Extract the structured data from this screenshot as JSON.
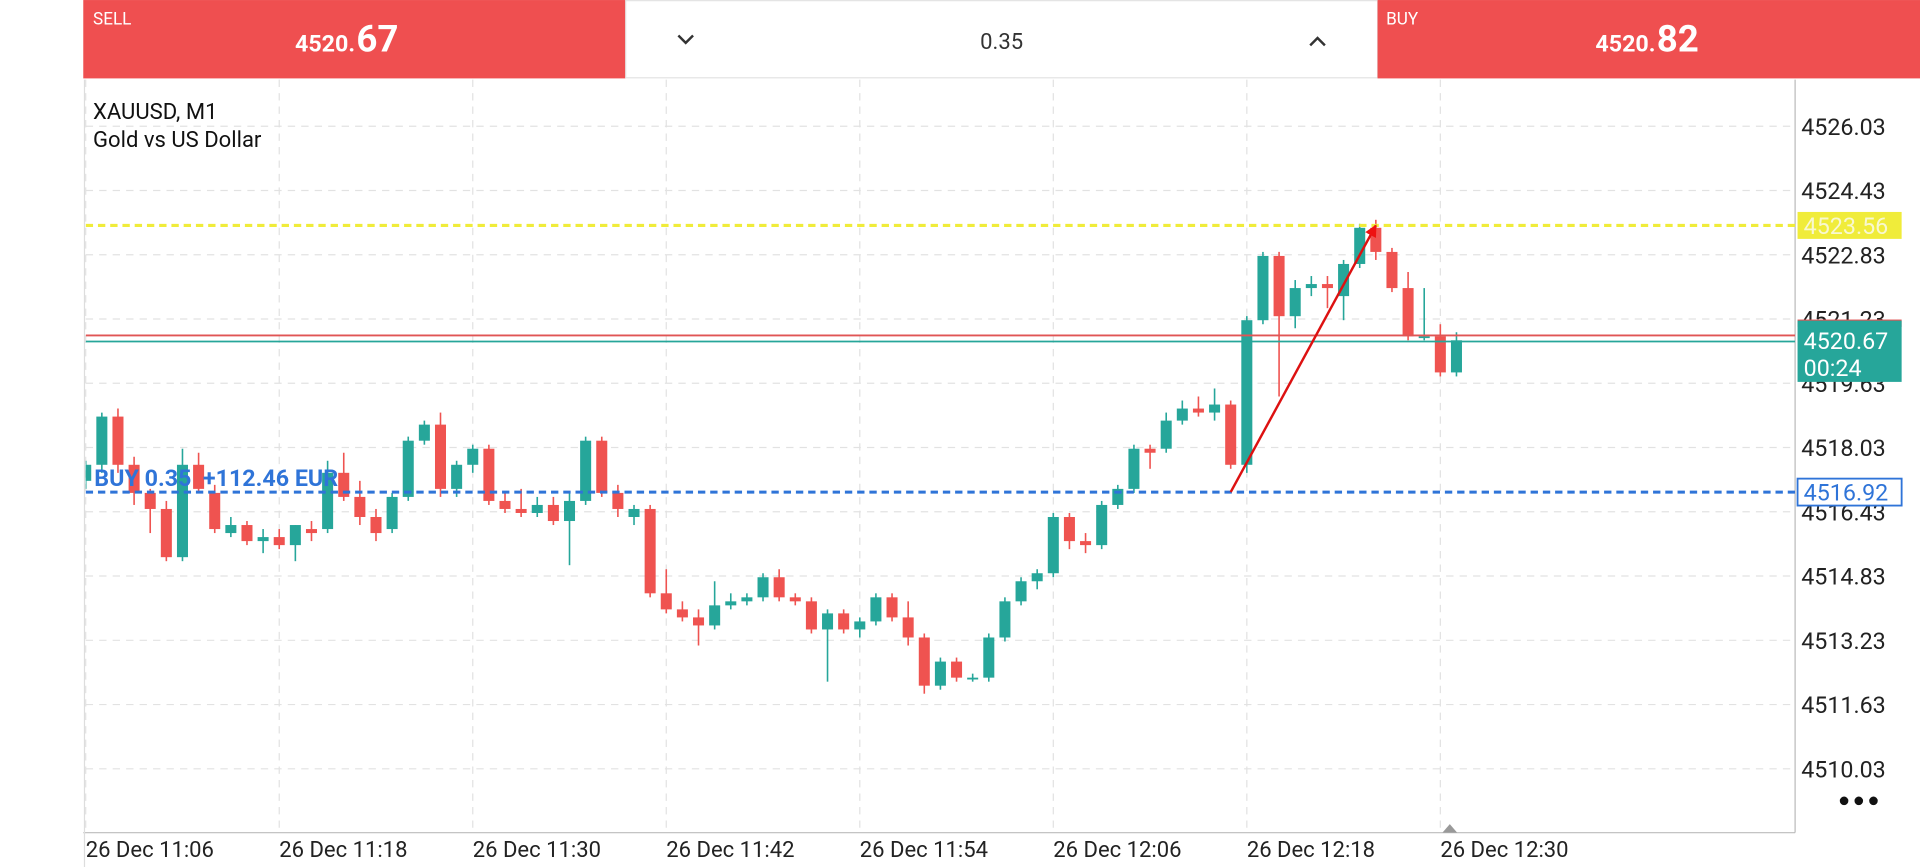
{
  "header": {
    "sell": {
      "label": "SELL",
      "price_main": "4520.",
      "price_pips": "67"
    },
    "volume": "0.35",
    "buy": {
      "label": "BUY",
      "price_main": "4520.",
      "price_pips": "82"
    }
  },
  "chart_data": {
    "type": "candlestick",
    "title": "XAUUSD, M1",
    "subtitle": "Gold vs US Dollar",
    "x": [
      "26 Dec 11:06",
      "26 Dec 11:07",
      "26 Dec 11:08",
      "26 Dec 11:09",
      "26 Dec 11:10",
      "26 Dec 11:11",
      "26 Dec 11:12",
      "26 Dec 11:13",
      "26 Dec 11:14",
      "26 Dec 11:15",
      "26 Dec 11:16",
      "26 Dec 11:17",
      "26 Dec 11:18",
      "26 Dec 11:19",
      "26 Dec 11:20",
      "26 Dec 11:21",
      "26 Dec 11:22",
      "26 Dec 11:23",
      "26 Dec 11:24",
      "26 Dec 11:25",
      "26 Dec 11:26",
      "26 Dec 11:27",
      "26 Dec 11:28",
      "26 Dec 11:29",
      "26 Dec 11:30",
      "26 Dec 11:31",
      "26 Dec 11:32",
      "26 Dec 11:33",
      "26 Dec 11:34",
      "26 Dec 11:35",
      "26 Dec 11:36",
      "26 Dec 11:37",
      "26 Dec 11:38",
      "26 Dec 11:39",
      "26 Dec 11:40",
      "26 Dec 11:41",
      "26 Dec 11:42",
      "26 Dec 11:43",
      "26 Dec 11:44",
      "26 Dec 11:45",
      "26 Dec 11:46",
      "26 Dec 11:47",
      "26 Dec 11:48",
      "26 Dec 11:49",
      "26 Dec 11:50",
      "26 Dec 11:51",
      "26 Dec 11:52",
      "26 Dec 11:53",
      "26 Dec 11:54",
      "26 Dec 11:55",
      "26 Dec 11:56",
      "26 Dec 11:57",
      "26 Dec 11:58",
      "26 Dec 11:59",
      "26 Dec 12:00",
      "26 Dec 12:01",
      "26 Dec 12:02",
      "26 Dec 12:03",
      "26 Dec 12:04",
      "26 Dec 12:05",
      "26 Dec 12:06",
      "26 Dec 12:07",
      "26 Dec 12:08",
      "26 Dec 12:09",
      "26 Dec 12:10",
      "26 Dec 12:11",
      "26 Dec 12:12",
      "26 Dec 12:13",
      "26 Dec 12:14",
      "26 Dec 12:15",
      "26 Dec 12:16",
      "26 Dec 12:17",
      "26 Dec 12:18",
      "26 Dec 12:19",
      "26 Dec 12:20",
      "26 Dec 12:21",
      "26 Dec 12:22",
      "26 Dec 12:23",
      "26 Dec 12:24",
      "26 Dec 12:25",
      "26 Dec 12:26",
      "26 Dec 12:27",
      "26 Dec 12:28",
      "26 Dec 12:29",
      "26 Dec 12:30",
      "26 Dec 12:31"
    ],
    "open": [
      4517.2,
      4517.6,
      4518.8,
      4517.6,
      4516.9,
      4516.5,
      4515.3,
      4517.6,
      4516.9,
      4515.9,
      4516.1,
      4515.7,
      4515.8,
      4515.6,
      4516.0,
      4516.0,
      4517.4,
      4516.8,
      4516.3,
      4516.0,
      4516.8,
      4518.2,
      4518.6,
      4517.0,
      4517.6,
      4518.0,
      4516.7,
      4516.5,
      4516.4,
      4516.6,
      4516.2,
      4516.7,
      4518.2,
      4516.9,
      4516.3,
      4516.5,
      4514.4,
      4514.0,
      4513.8,
      4513.6,
      4514.1,
      4514.2,
      4514.3,
      4514.8,
      4514.3,
      4514.2,
      4513.5,
      4513.9,
      4513.5,
      4513.7,
      4514.3,
      4513.8,
      4513.3,
      4512.1,
      4512.7,
      4512.3,
      4512.3,
      4513.3,
      4514.2,
      4514.7,
      4514.9,
      4516.3,
      4515.7,
      4515.6,
      4516.6,
      4517.0,
      4518.0,
      4518.0,
      4518.7,
      4519.0,
      4518.9,
      4519.1,
      4517.6,
      4521.2,
      4522.8,
      4521.3,
      4522.0,
      4522.1,
      4521.8,
      4522.6,
      4523.5,
      4522.9,
      4522.0,
      4520.8,
      4520.8,
      4519.9
    ],
    "high": [
      4517.7,
      4518.9,
      4519.0,
      4517.8,
      4517.0,
      4516.7,
      4518.0,
      4517.9,
      4517.1,
      4516.3,
      4516.2,
      4516.0,
      4516.0,
      4516.1,
      4516.2,
      4517.7,
      4517.9,
      4517.2,
      4516.5,
      4516.9,
      4518.3,
      4518.7,
      4518.9,
      4517.7,
      4518.1,
      4518.1,
      4516.9,
      4517.0,
      4516.8,
      4516.8,
      4516.9,
      4518.3,
      4518.3,
      4517.1,
      4516.6,
      4516.6,
      4515.0,
      4514.2,
      4514.0,
      4514.7,
      4514.4,
      4514.4,
      4514.9,
      4515.0,
      4514.4,
      4514.3,
      4514.0,
      4514.0,
      4513.8,
      4514.4,
      4514.4,
      4514.2,
      4513.4,
      4512.8,
      4512.8,
      4512.4,
      4513.4,
      4514.3,
      4514.8,
      4515.0,
      4516.4,
      4516.4,
      4515.9,
      4516.7,
      4517.1,
      4518.1,
      4518.1,
      4518.9,
      4519.2,
      4519.3,
      4519.5,
      4519.2,
      4521.3,
      4522.9,
      4522.9,
      4522.2,
      4522.3,
      4522.3,
      4522.7,
      4523.6,
      4523.7,
      4523.0,
      4522.4,
      4522.0,
      4521.1,
      4520.9
    ],
    "low": [
      4517.0,
      4517.4,
      4517.4,
      4516.6,
      4515.9,
      4515.2,
      4515.2,
      4516.9,
      4515.9,
      4515.8,
      4515.6,
      4515.4,
      4515.5,
      4515.2,
      4515.7,
      4515.9,
      4516.7,
      4516.1,
      4515.7,
      4515.9,
      4516.7,
      4518.1,
      4516.8,
      4516.8,
      4517.4,
      4516.6,
      4516.4,
      4516.3,
      4516.3,
      4516.1,
      4515.1,
      4516.6,
      4516.8,
      4516.3,
      4516.1,
      4514.3,
      4513.9,
      4513.7,
      4513.1,
      4513.5,
      4514.0,
      4514.1,
      4514.2,
      4514.2,
      4514.1,
      4513.4,
      4512.2,
      4513.4,
      4513.3,
      4513.6,
      4513.7,
      4513.1,
      4511.9,
      4512.0,
      4512.2,
      4512.2,
      4512.2,
      4513.2,
      4514.1,
      4514.5,
      4514.8,
      4515.5,
      4515.4,
      4515.5,
      4516.5,
      4516.9,
      4517.5,
      4517.9,
      4518.6,
      4518.8,
      4518.7,
      4517.5,
      4517.4,
      4521.1,
      4519.3,
      4521.0,
      4521.8,
      4521.5,
      4521.2,
      4522.5,
      4522.7,
      4521.9,
      4520.7,
      4520.7,
      4519.8,
      4519.8
    ],
    "close": [
      4517.6,
      4518.8,
      4517.6,
      4516.9,
      4516.5,
      4515.3,
      4517.6,
      4517.0,
      4516.0,
      4516.1,
      4515.7,
      4515.8,
      4515.6,
      4516.1,
      4515.9,
      4517.4,
      4516.8,
      4516.3,
      4515.9,
      4516.8,
      4518.2,
      4518.6,
      4517.0,
      4517.6,
      4518.0,
      4516.7,
      4516.5,
      4516.4,
      4516.6,
      4516.2,
      4516.7,
      4518.2,
      4516.9,
      4516.5,
      4516.5,
      4514.4,
      4514.0,
      4513.8,
      4513.6,
      4514.1,
      4514.2,
      4514.3,
      4514.8,
      4514.3,
      4514.2,
      4513.5,
      4513.9,
      4513.5,
      4513.7,
      4514.3,
      4513.8,
      4513.3,
      4512.1,
      4512.7,
      4512.3,
      4512.3,
      4513.3,
      4514.2,
      4514.7,
      4514.9,
      4516.3,
      4515.7,
      4515.6,
      4516.6,
      4517.0,
      4518.0,
      4517.9,
      4518.7,
      4519.0,
      4518.9,
      4519.1,
      4517.6,
      4521.2,
      4522.8,
      4521.3,
      4522.0,
      4522.1,
      4522.0,
      4522.6,
      4523.5,
      4522.9,
      4522.0,
      4520.8,
      4520.8,
      4519.9,
      4520.7
    ],
    "up_color": "#26a69a",
    "down_color": "#ef5350",
    "ylim": [
      4508.44,
      4527.19
    ],
    "yticks": [
      4510.03,
      4511.63,
      4513.23,
      4514.83,
      4516.43,
      4518.03,
      4519.63,
      4521.23,
      4522.83,
      4524.43,
      4526.03
    ],
    "xticks": [
      "26 Dec 11:06",
      "26 Dec 11:18",
      "26 Dec 11:30",
      "26 Dec 11:42",
      "26 Dec 11:54",
      "26 Dec 12:06",
      "26 Dec 12:18",
      "26 Dec 12:30"
    ],
    "grid": true,
    "price_lines": [
      {
        "value": 4523.56,
        "color": "#f0ec3a",
        "style": "dashed"
      },
      {
        "value": 4516.92,
        "color": "#2f74d8",
        "style": "dashed",
        "label": "BUY 0.35  +112.46 EUR"
      },
      {
        "value": 4520.82,
        "color": "#e05555",
        "style": "solid"
      },
      {
        "value": 4520.67,
        "color": "#26a69a",
        "style": "solid",
        "countdown": "00:24"
      }
    ],
    "trend_line": {
      "x": [
        "26 Dec 12:17",
        "26 Dec 12:26"
      ],
      "y": [
        4516.92,
        4523.56
      ],
      "color": "#dd1111"
    }
  }
}
